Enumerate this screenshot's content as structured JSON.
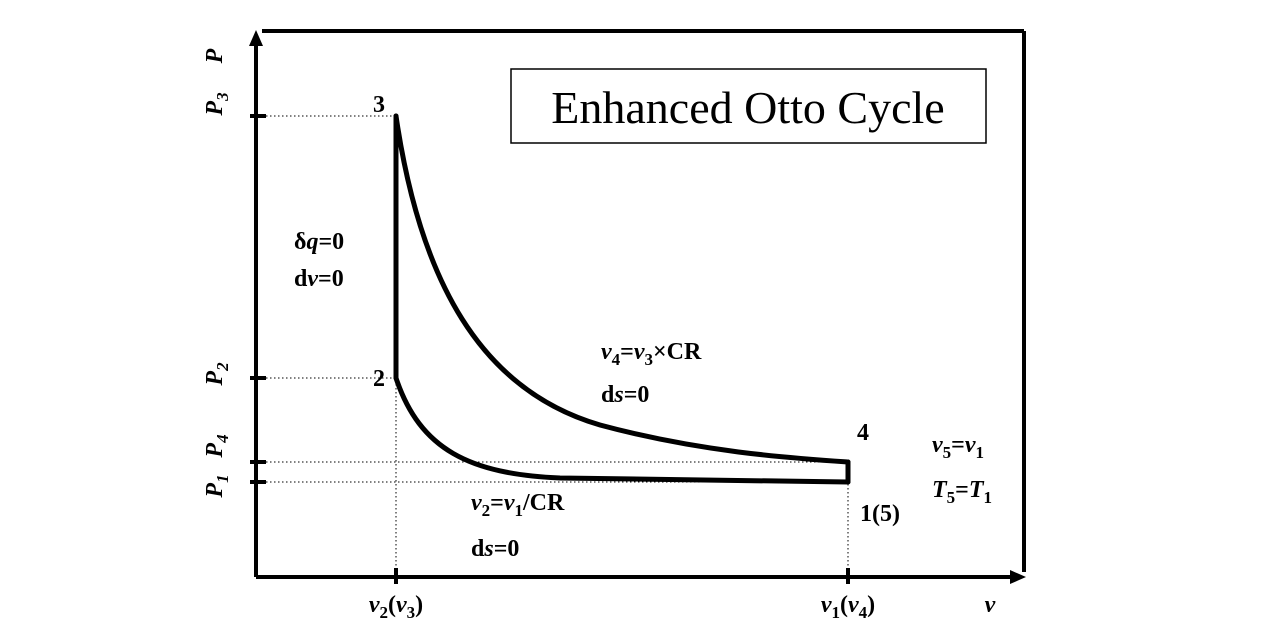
{
  "title": "Enhanced Otto Cycle",
  "axes": {
    "y_label": "P",
    "x_label": "v"
  },
  "y_ticks": {
    "p3": {
      "main": "P",
      "sub": "3"
    },
    "p2": {
      "main": "P",
      "sub": "2"
    },
    "p4": {
      "main": "P",
      "sub": "4"
    },
    "p1": {
      "main": "P",
      "sub": "1"
    }
  },
  "x_ticks": {
    "v2": {
      "a": "v",
      "a_sub": "2",
      "open": "(",
      "b": "v",
      "b_sub": "3",
      "close": ")"
    },
    "v1": {
      "a": "v",
      "a_sub": "1",
      "open": "(",
      "b": "v",
      "b_sub": "4",
      "close": ")"
    }
  },
  "states": {
    "s3": "3",
    "s2": "2",
    "s4": "4",
    "s15": "1(5)"
  },
  "process_labels": {
    "heat_add": {
      "delta": "δ",
      "q": "q",
      "eq": "=0"
    },
    "const_vol": {
      "d": "d",
      "v": "v",
      "eq": "=0"
    },
    "expansion_rel": {
      "v4": "v",
      "v4_sub": "4",
      "eq": "=",
      "v3": "v",
      "v3_sub": "3",
      "rest": "×CR"
    },
    "expansion_ds": {
      "d": "d",
      "s": "s",
      "eq": "=0"
    },
    "compression_rel": {
      "v2": "v",
      "v2_sub": "2",
      "eq": "=",
      "v1": "v",
      "v1_sub": "1",
      "rest": "/CR"
    },
    "compression_ds": {
      "d": "d",
      "s": "s",
      "eq": "=0"
    },
    "state5_v": {
      "v5": "v",
      "v5_sub": "5",
      "eq": "=",
      "v1": "v",
      "v1_sub": "1"
    },
    "state5_t": {
      "t5": "T",
      "t5_sub": "5",
      "eq": "=",
      "t1": "T",
      "t1_sub": "1"
    }
  },
  "colors": {
    "ink": "#000000",
    "background": "#ffffff"
  }
}
